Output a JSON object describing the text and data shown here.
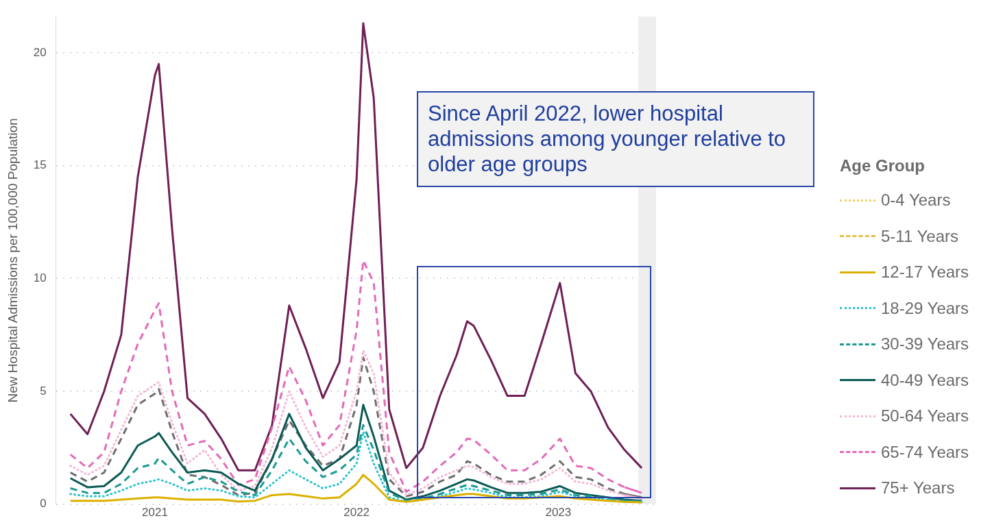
{
  "chart_data": {
    "type": "line",
    "ylabel": "New Hospital Admissions per 100,000 Population",
    "legend_title": "Age Group",
    "legend": "right",
    "grid": "y",
    "marker": "none",
    "annotations": [
      "Since April 2022, lower hospital admissions among younger relative to older age groups"
    ],
    "x": [
      "2020-08-01",
      "2020-09-01",
      "2020-10-01",
      "2020-11-01",
      "2020-12-01",
      "2021-01-01",
      "2021-01-08",
      "2021-02-01",
      "2021-03-01",
      "2021-04-01",
      "2021-05-01",
      "2021-06-01",
      "2021-07-01",
      "2021-08-01",
      "2021-09-01",
      "2021-10-01",
      "2021-11-01",
      "2021-12-01",
      "2022-01-01",
      "2022-01-13",
      "2022-02-01",
      "2022-03-01",
      "2022-04-01",
      "2022-05-01",
      "2022-06-01",
      "2022-07-01",
      "2022-07-20",
      "2022-08-01",
      "2022-09-01",
      "2022-10-01",
      "2022-11-01",
      "2022-12-01",
      "2023-01-04",
      "2023-02-01",
      "2023-03-01",
      "2023-04-01",
      "2023-05-01",
      "2023-06-01"
    ],
    "xlim": [
      "2020-07-06",
      "2023-06-27"
    ],
    "xticks": [
      "2021",
      "2022",
      "2023"
    ],
    "ylim": [
      0,
      21.6
    ],
    "yticks": [
      0,
      5,
      10,
      15,
      20
    ],
    "bands": [
      {
        "axis": "x",
        "from": "2023-05-26",
        "to": "2023-06-27",
        "color": "#eeeeee"
      }
    ],
    "series": [
      {
        "name": "0-4 Years",
        "color": "#f0d060",
        "line_style": "dotted",
        "values": [
          null,
          null,
          null,
          null,
          null,
          null,
          null,
          null,
          null,
          null,
          null,
          null,
          null,
          null,
          null,
          null,
          null,
          null,
          null,
          null,
          null,
          null,
          null,
          null,
          null,
          null,
          null,
          null,
          null,
          null,
          null,
          null,
          null,
          null,
          null,
          null,
          null,
          null
        ]
      },
      {
        "name": "5-11 Years",
        "color": "#e8c040",
        "line_style": "dashed",
        "values": [
          null,
          null,
          null,
          null,
          null,
          null,
          null,
          null,
          null,
          null,
          null,
          null,
          null,
          null,
          null,
          null,
          null,
          null,
          null,
          null,
          null,
          null,
          null,
          null,
          null,
          null,
          null,
          null,
          null,
          null,
          null,
          null,
          null,
          null,
          null,
          null,
          null,
          null
        ]
      },
      {
        "name": "12-17 Years",
        "color": "#dcb000",
        "line_style": "solid",
        "values": [
          0.15,
          0.15,
          0.15,
          0.2,
          0.25,
          0.3,
          0.3,
          0.25,
          0.2,
          0.2,
          0.2,
          0.12,
          0.15,
          0.4,
          0.45,
          0.35,
          0.25,
          0.3,
          0.9,
          1.3,
          0.9,
          0.2,
          0.1,
          0.2,
          0.3,
          0.4,
          0.45,
          0.45,
          0.35,
          0.25,
          0.25,
          0.3,
          0.35,
          0.25,
          0.2,
          0.15,
          0.1,
          0.08
        ]
      },
      {
        "name": "18-29 Years",
        "color": "#2cc2cc",
        "line_style": "dotted",
        "values": [
          0.45,
          0.35,
          0.35,
          0.6,
          0.9,
          1.05,
          1.1,
          0.9,
          0.6,
          0.7,
          0.6,
          0.35,
          0.3,
          0.9,
          1.5,
          1.1,
          0.7,
          0.9,
          1.8,
          3.2,
          1.8,
          0.3,
          0.1,
          0.2,
          0.35,
          0.55,
          0.7,
          0.65,
          0.5,
          0.3,
          0.3,
          0.35,
          0.55,
          0.35,
          0.25,
          0.2,
          0.1,
          0.1
        ]
      },
      {
        "name": "30-39 Years",
        "color": "#1a9a93",
        "line_style": "dashed",
        "values": [
          0.7,
          0.5,
          0.5,
          0.9,
          1.6,
          1.8,
          2.05,
          1.5,
          0.9,
          1.2,
          1.0,
          0.55,
          0.4,
          1.5,
          2.9,
          1.9,
          1.2,
          1.5,
          2.2,
          3.5,
          2.4,
          0.5,
          0.15,
          0.25,
          0.45,
          0.7,
          0.85,
          0.8,
          0.6,
          0.4,
          0.4,
          0.45,
          0.65,
          0.4,
          0.35,
          0.25,
          0.15,
          0.1
        ]
      },
      {
        "name": "40-49 Years",
        "color": "#0b5a55",
        "line_style": "solid",
        "values": [
          1.15,
          0.75,
          0.8,
          1.4,
          2.6,
          3.0,
          3.15,
          2.3,
          1.4,
          1.5,
          1.4,
          0.9,
          0.6,
          2.0,
          4.0,
          2.5,
          1.5,
          2.0,
          2.6,
          4.4,
          3.0,
          0.6,
          0.2,
          0.35,
          0.6,
          0.9,
          1.1,
          1.05,
          0.75,
          0.5,
          0.5,
          0.55,
          0.8,
          0.5,
          0.4,
          0.3,
          0.2,
          0.15
        ]
      },
      {
        "name": "50-64 Years",
        "color": "#f4b6d8",
        "line_style": "dotted",
        "values": [
          1.7,
          1.3,
          1.7,
          3.3,
          4.8,
          5.3,
          5.4,
          3.6,
          1.8,
          2.4,
          1.3,
          0.6,
          0.8,
          2.5,
          5.0,
          3.4,
          2.1,
          2.6,
          5.0,
          6.8,
          5.8,
          1.4,
          0.4,
          0.7,
          1.2,
          1.5,
          1.7,
          1.65,
          1.2,
          0.9,
          0.9,
          1.1,
          1.6,
          1.0,
          0.9,
          0.6,
          0.4,
          0.25
        ]
      },
      {
        "name": "65-74 Years",
        "color": "#e36ab8",
        "line_style": "dashed",
        "values": [
          2.2,
          1.6,
          2.3,
          5.0,
          7.1,
          8.6,
          8.9,
          5.0,
          2.6,
          2.8,
          2.0,
          0.85,
          1.1,
          3.4,
          6.1,
          4.6,
          2.6,
          3.5,
          7.7,
          10.8,
          9.8,
          2.3,
          0.55,
          1.0,
          1.7,
          2.3,
          2.9,
          2.85,
          2.2,
          1.5,
          1.5,
          2.0,
          2.9,
          1.7,
          1.6,
          1.1,
          0.75,
          0.5
        ]
      },
      {
        "color": "#6e6e6e",
        "line_style": "dashed",
        "values": [
          1.4,
          1.0,
          1.4,
          2.9,
          4.4,
          4.9,
          5.1,
          3.2,
          1.3,
          1.2,
          0.85,
          0.4,
          0.5,
          2.0,
          3.7,
          2.6,
          1.7,
          2.0,
          4.4,
          6.5,
          5.0,
          1.1,
          0.35,
          0.55,
          1.0,
          1.3,
          1.9,
          1.8,
          1.3,
          1.0,
          1.0,
          1.3,
          1.9,
          1.2,
          1.1,
          0.7,
          0.45,
          0.3
        ]
      },
      {
        "name": "75+ Years",
        "color": "#6e1f55",
        "line_style": "solid",
        "values": [
          4.0,
          3.1,
          5.0,
          7.5,
          14.5,
          19.0,
          19.5,
          12.2,
          4.7,
          4.0,
          2.9,
          1.5,
          1.5,
          3.5,
          8.8,
          6.9,
          4.7,
          6.3,
          14.4,
          21.3,
          18.0,
          4.2,
          1.6,
          2.5,
          4.8,
          6.6,
          8.1,
          7.9,
          6.4,
          4.8,
          4.8,
          7.1,
          9.8,
          5.8,
          5.0,
          3.4,
          2.4,
          1.6
        ]
      }
    ]
  }
}
